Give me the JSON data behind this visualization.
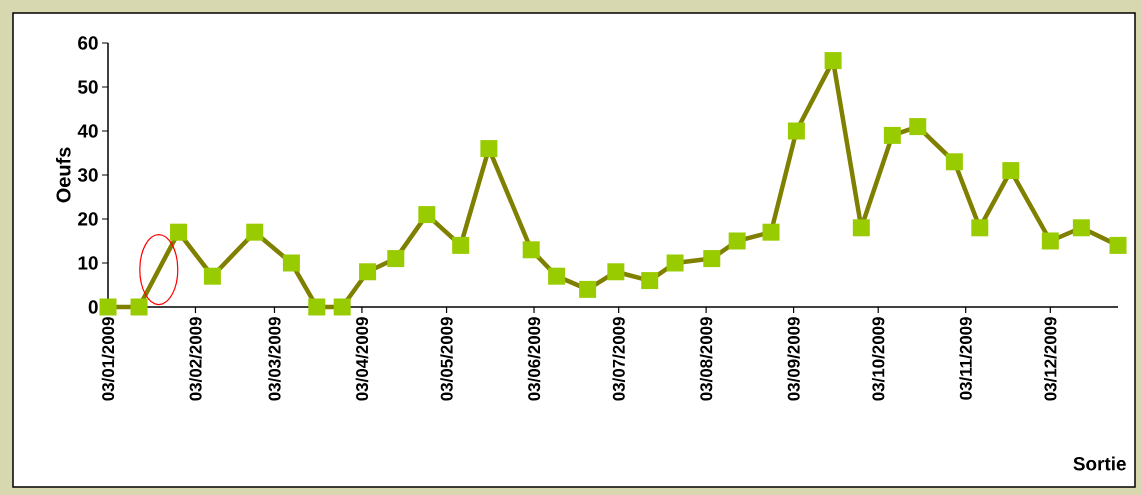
{
  "chart_data": {
    "type": "line",
    "xlabel": "Sortie",
    "ylabel": "Oeufs",
    "x": [
      "2009-01-03",
      "2009-01-14",
      "2009-01-28",
      "2009-02-09",
      "2009-02-24",
      "2009-03-09",
      "2009-03-18",
      "2009-03-27",
      "2009-04-05",
      "2009-04-15",
      "2009-04-26",
      "2009-05-08",
      "2009-05-18",
      "2009-06-02",
      "2009-06-11",
      "2009-06-22",
      "2009-07-02",
      "2009-07-14",
      "2009-07-23",
      "2009-08-05",
      "2009-08-14",
      "2009-08-26",
      "2009-09-04",
      "2009-09-17",
      "2009-09-27",
      "2009-10-08",
      "2009-10-17",
      "2009-10-30",
      "2009-11-08",
      "2009-11-19",
      "2009-12-03",
      "2009-12-14",
      "2009-12-27"
    ],
    "series": [
      {
        "color": "#808000",
        "values": [
          0,
          0,
          17,
          7,
          17,
          10,
          0,
          0,
          8,
          11,
          21,
          14,
          36,
          13,
          7,
          4,
          8,
          6,
          10,
          11,
          15,
          17,
          40,
          56,
          18,
          39,
          41,
          33,
          18,
          31,
          15,
          18,
          14
        ]
      }
    ],
    "xlim": [
      "2009-01-03",
      "2009-12-27"
    ],
    "xticks": [
      {
        "value": "2009-01-03",
        "label": "03/01/2009"
      },
      {
        "value": "2009-02-03",
        "label": "03/02/2009"
      },
      {
        "value": "2009-03-03",
        "label": "03/03/2009"
      },
      {
        "value": "2009-04-03",
        "label": "03/04/2009"
      },
      {
        "value": "2009-05-03",
        "label": "03/05/2009"
      },
      {
        "value": "2009-06-03",
        "label": "03/06/2009"
      },
      {
        "value": "2009-07-03",
        "label": "03/07/2009"
      },
      {
        "value": "2009-08-03",
        "label": "03/08/2009"
      },
      {
        "value": "2009-09-03",
        "label": "03/09/2009"
      },
      {
        "value": "2009-10-03",
        "label": "03/10/2009"
      },
      {
        "value": "2009-11-03",
        "label": "03/11/2009"
      },
      {
        "value": "2009-12-03",
        "label": "03/12/2009"
      }
    ],
    "ylim": [
      0,
      60
    ],
    "yticks": [
      0,
      10,
      20,
      30,
      40,
      50,
      60
    ],
    "marker": "square",
    "line_style": "solid",
    "grid": false,
    "legend": false
  }
}
